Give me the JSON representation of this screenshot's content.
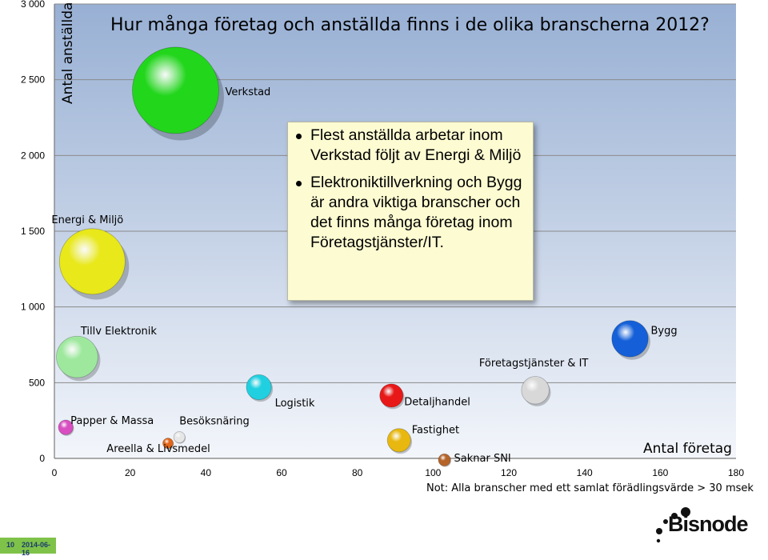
{
  "chart_data": {
    "type": "scatter",
    "subtype": "bubble",
    "title": "Hur många företag och anställda finns i de olika branscherna 2012?",
    "ylabel": "Antal anställda",
    "xlabel": "Antal företag",
    "note": "Not: Alla branscher med ett samlat förädlingsvärde > 30 msek",
    "xlim": [
      0,
      180
    ],
    "ylim": [
      0,
      3000
    ],
    "x_ticks": [
      "0",
      "20",
      "40",
      "60",
      "80",
      "100",
      "120",
      "140",
      "160",
      "180"
    ],
    "y_ticks": [
      "0",
      "500",
      "1 000",
      "1 500",
      "2 000",
      "2 500",
      "3 000"
    ],
    "grid": "horizontal",
    "points": [
      {
        "name": "Verkstad",
        "x": 32,
        "y": 2430,
        "size": 1.0,
        "color": "#22d61c"
      },
      {
        "name": "Energi & Miljö",
        "x": 10,
        "y": 1300,
        "size": 0.76,
        "color": "#e8e81a"
      },
      {
        "name": "Tillv Elektronik",
        "x": 6,
        "y": 670,
        "size": 0.48,
        "color": "#9ee89e"
      },
      {
        "name": "Papper & Massa",
        "x": 3,
        "y": 205,
        "size": 0.17,
        "color": "#d94fc2"
      },
      {
        "name": "Besöksnäring",
        "x": 33,
        "y": 140,
        "size": 0.13,
        "color": "#e6e6e6"
      },
      {
        "name": "Areella & Livsmedel",
        "x": 30,
        "y": 100,
        "size": 0.12,
        "color": "#e0661a"
      },
      {
        "name": "Logistik",
        "x": 54,
        "y": 470,
        "size": 0.29,
        "color": "#20d0e0"
      },
      {
        "name": "Detaljhandel",
        "x": 89,
        "y": 415,
        "size": 0.27,
        "color": "#e81818"
      },
      {
        "name": "Fastighet",
        "x": 91,
        "y": 120,
        "size": 0.27,
        "color": "#e8b810"
      },
      {
        "name": "Saknar SNI",
        "x": 103,
        "y": -10,
        "size": 0.14,
        "color": "#b5652a"
      },
      {
        "name": "Företagstjänster & IT",
        "x": 127,
        "y": 450,
        "size": 0.32,
        "color": "#d8d8d8"
      },
      {
        "name": "Bygg",
        "x": 152,
        "y": 790,
        "size": 0.42,
        "color": "#1560d8"
      }
    ]
  },
  "callout": {
    "bullets": [
      "Flest anställda arbetar inom Verkstad följt av Energi & Miljö",
      "Elektroniktillverkning och Bygg är andra viktiga branscher och det finns många företag inom Företagstjänster/IT."
    ]
  },
  "footer": {
    "page_number": "10",
    "date": "2014-06-16",
    "logo_text": "Bisnode"
  }
}
